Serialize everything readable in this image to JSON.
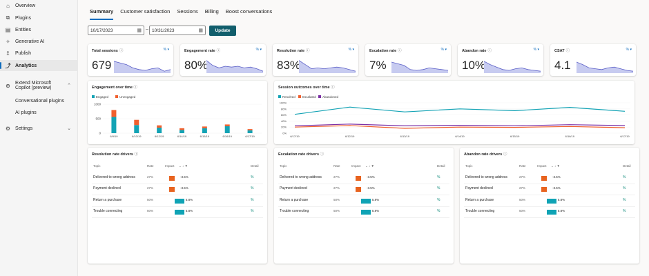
{
  "sidebar": {
    "items": [
      {
        "label": "Overview",
        "icon": "overview-icon"
      },
      {
        "label": "Plugins",
        "icon": "plugins-icon"
      },
      {
        "label": "Entities",
        "icon": "entities-icon"
      },
      {
        "label": "Generative AI",
        "icon": "generative-ai-icon"
      },
      {
        "label": "Publish",
        "icon": "publish-icon"
      },
      {
        "label": "Analytics",
        "icon": "analytics-icon",
        "active": true
      },
      {
        "label": "Extend Microsoft",
        "label2": "Copilot (preview)",
        "icon": "extend-icon"
      },
      {
        "label": "Conversational plugins"
      },
      {
        "label": "AI plugins"
      },
      {
        "label": "Settings",
        "icon": "settings-icon"
      }
    ]
  },
  "tabs": [
    "Summary",
    "Customer satisfaction",
    "Sessions",
    "Billing",
    "Boost conversations"
  ],
  "dates": {
    "start": "10/17/2023",
    "sep": "–",
    "end": "10/31/2023",
    "update": "Update"
  },
  "kpis": [
    {
      "title": "Total sessions",
      "value": "679",
      "pct": "%"
    },
    {
      "title": "Engagement rate",
      "value": "80%",
      "pct": "%"
    },
    {
      "title": "Resolution rate",
      "value": "83%",
      "pct": "%"
    },
    {
      "title": "Escalation rate",
      "value": "7%",
      "pct": "%"
    },
    {
      "title": "Abandon rate",
      "value": "10%",
      "pct": "%"
    },
    {
      "title": "CSAT",
      "value": "4.1",
      "pct": "%"
    }
  ],
  "engagement": {
    "title": "Engagement over time",
    "legend": [
      "Engaged",
      "Unengaged"
    ],
    "colors": [
      "#13a3b5",
      "#f1602e"
    ],
    "yticks": [
      "1000",
      "500",
      "0"
    ],
    "categories": [
      "6/9/19",
      "6/10/19",
      "6/12/19",
      "6/14/19",
      "6/15/19",
      "6/16/19",
      "6/17/19"
    ],
    "engaged": [
      560,
      280,
      190,
      110,
      170,
      240,
      100
    ],
    "unengaged": [
      240,
      180,
      80,
      60,
      60,
      60,
      40
    ]
  },
  "sessions": {
    "title": "Session outcomes over time",
    "legend": [
      "Resolved",
      "Escalated",
      "Abandoned"
    ],
    "colors": [
      "#13a3b5",
      "#f1602e",
      "#7b2fa5"
    ],
    "yticks": [
      "100%",
      "80%",
      "60%",
      "40%",
      "20%",
      "0%"
    ],
    "categories": [
      "6/17/19",
      "6/12/19",
      "6/13/19",
      "6/14/19",
      "6/15/19",
      "6/16/19",
      "6/17/19"
    ],
    "resolved": [
      62,
      86,
      70,
      80,
      74,
      85,
      72
    ],
    "escalated": [
      20,
      25,
      16,
      20,
      19,
      22,
      18
    ],
    "abandoned": [
      24,
      30,
      24,
      26,
      24,
      28,
      25
    ]
  },
  "drivers": [
    {
      "title": "Resolution rate drivers"
    },
    {
      "title": "Escalation rate drivers"
    },
    {
      "title": "Abandon rate drivers"
    }
  ],
  "driver_headers": {
    "topic": "Topic",
    "rate": "Rate",
    "impact": "Impact",
    "detail": "Detail"
  },
  "driver_rows": [
    {
      "topic": "Delivered to wrong address",
      "rate": "27%",
      "impact": "-3.5%",
      "value": -3.5,
      "detail": "%"
    },
    {
      "topic": "Payment declined",
      "rate": "27%",
      "impact": "-3.5%",
      "value": -3.5,
      "detail": "%"
    },
    {
      "topic": "Return a purchase",
      "rate": "50%",
      "impact": "5.8%",
      "value": 5.8,
      "detail": "%"
    },
    {
      "topic": "Trouble connecting",
      "rate": "50%",
      "impact": "5.8%",
      "value": 5.8,
      "detail": "%"
    }
  ]
}
